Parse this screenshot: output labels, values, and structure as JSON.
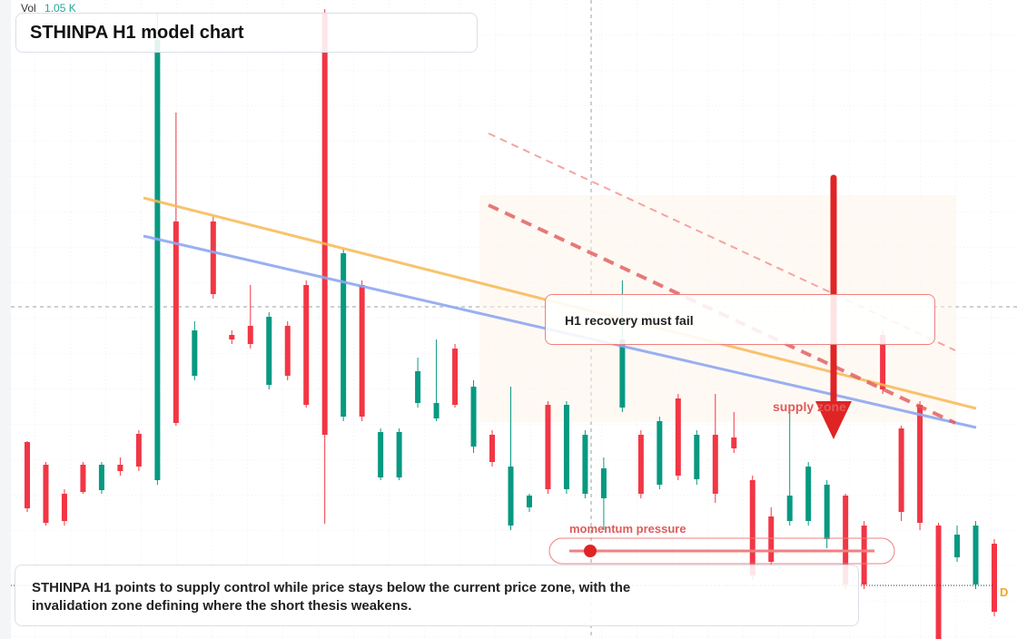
{
  "volume": {
    "label": "Vol",
    "value": "1.05 K"
  },
  "header": {
    "title": "STHINPA H1 model chart"
  },
  "annotations": {
    "callout": "H1 recovery must fail",
    "zone": "supply zone",
    "gauge": "momentum pressure",
    "badge": "D"
  },
  "footer": {
    "text": "STHINPA H1 points to supply control while price stays below the current price zone, with the invalidation zone defining where the short thesis weakens."
  },
  "chart_data": {
    "type": "candlestick",
    "ylim": [
      0,
      704
    ],
    "up_color": "#089981",
    "down_color": "#f23645",
    "open": [
      217,
      192,
      160,
      192,
      164,
      192,
      226,
      175,
      460,
      290,
      460,
      335,
      345,
      280,
      345,
      390,
      690,
      245,
      390,
      178,
      178,
      260,
      243,
      320,
      212,
      225,
      125,
      145,
      258,
      165,
      160,
      155,
      255,
      225,
      170,
      265,
      176,
      225,
      222,
      175,
      135,
      130,
      130,
      110,
      158,
      125,
      335,
      232,
      258,
      125,
      90,
      60,
      105
    ],
    "close": [
      144,
      128,
      130,
      162,
      192,
      185,
      190,
      660,
      238,
      340,
      380,
      330,
      325,
      355,
      290,
      258,
      225,
      425,
      245,
      228,
      228,
      295,
      260,
      258,
      278,
      195,
      190,
      158,
      165,
      258,
      225,
      188,
      330,
      160,
      240,
      180,
      225,
      160,
      210,
      70,
      85,
      158,
      190,
      170,
      60,
      60,
      275,
      140,
      128,
      0,
      115,
      125,
      30
    ],
    "high": [
      218,
      195,
      165,
      195,
      195,
      200,
      230,
      690,
      580,
      350,
      465,
      340,
      390,
      360,
      350,
      395,
      694,
      430,
      395,
      232,
      232,
      310,
      330,
      325,
      285,
      230,
      278,
      160,
      262,
      262,
      230,
      200,
      395,
      230,
      245,
      270,
      230,
      270,
      250,
      180,
      145,
      250,
      195,
      175,
      160,
      130,
      340,
      235,
      262,
      128,
      125,
      130,
      110
    ],
    "low": [
      140,
      125,
      125,
      160,
      160,
      180,
      185,
      170,
      235,
      285,
      375,
      325,
      320,
      275,
      285,
      255,
      127,
      240,
      240,
      175,
      175,
      255,
      240,
      255,
      205,
      190,
      120,
      140,
      160,
      160,
      155,
      120,
      250,
      155,
      165,
      175,
      170,
      150,
      205,
      65,
      80,
      125,
      125,
      100,
      55,
      55,
      270,
      130,
      120,
      0,
      85,
      55,
      25
    ]
  }
}
